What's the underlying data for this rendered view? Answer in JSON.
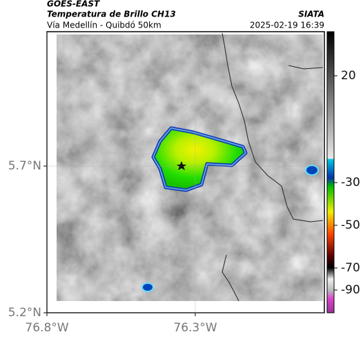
{
  "header": {
    "satellite": "GOES-EAST",
    "product": "Temperatura de Brillo CH13",
    "route": "Vía Medellín - Quibdó 50km",
    "source": "SIATA",
    "timestamp": "2025-02-19 16:39"
  },
  "map": {
    "xlim": [
      -76.8,
      -75.865
    ],
    "ylim": [
      5.2,
      6.158
    ],
    "xticks": [
      {
        "value": -76.8,
        "label": "76.8°W"
      },
      {
        "value": -76.3,
        "label": "76.3°W"
      }
    ],
    "yticks": [
      {
        "value": 5.2,
        "label": "5.2°N"
      },
      {
        "value": 5.7,
        "label": "5.7°N"
      }
    ]
  },
  "colorbar": {
    "ticks": [
      20,
      -30,
      -50,
      -70,
      -90
    ]
  }
}
